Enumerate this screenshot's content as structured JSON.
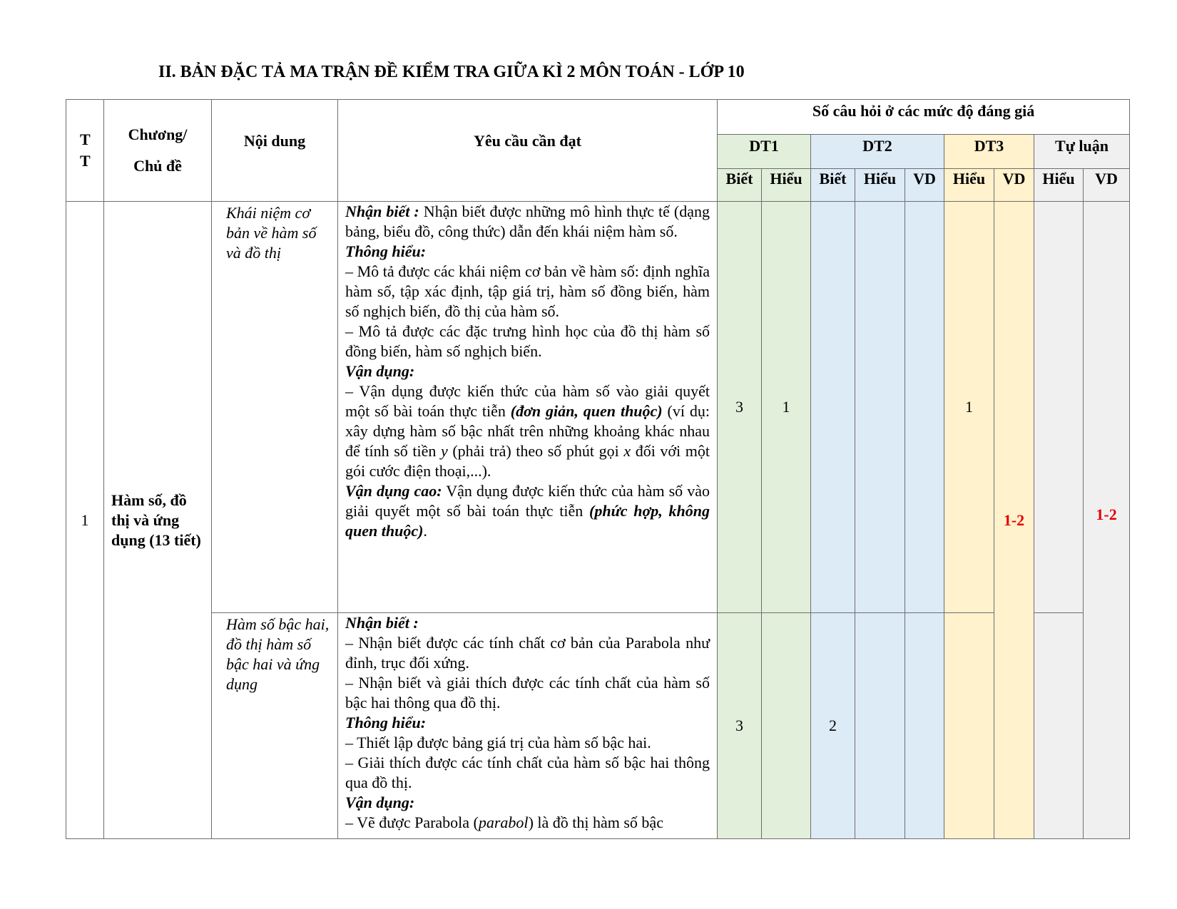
{
  "title": "II. BẢN ĐẶC TẢ MA TRẬN ĐỀ KIỂM TRA GIỮA KÌ 2 MÔN TOÁN - LỚP 10",
  "colors": {
    "dt1": "#e2efda",
    "dt2": "#ddebf7",
    "dt3": "#fff2cc",
    "tu_luan": "#f0f0f0",
    "highlight": "#e60000"
  },
  "header": {
    "tt": "T T",
    "chapter_line1": "Chương/",
    "chapter_line2": "Chủ đề",
    "content": "Nội dung",
    "requirement": "Yêu cầu cần đạt",
    "levels": "Số câu hỏi ở các mức độ đáng giá",
    "groups": [
      "DT1",
      "DT2",
      "DT3",
      "Tự luận"
    ],
    "sub": [
      "Biết",
      "Hiểu",
      "Biết",
      "Hiểu",
      "VD",
      "Hiểu",
      "VD",
      "Hiểu",
      "VD"
    ]
  },
  "rows": [
    {
      "tt": "1",
      "chapter": "Hàm số, đồ thị và ứng dụng (13 tiết)",
      "content": "Khái niệm cơ bản về hàm số và đồ thị",
      "requirement": [
        [
          {
            "s": "bi",
            "t": "Nhận biết :"
          },
          {
            "t": "  Nhận biết được những mô hình thực tế (dạng bảng, biểu đồ, công thức) dẫn đến khái niệm hàm số."
          }
        ],
        [
          {
            "s": "bi",
            "t": "Thông hiểu:"
          }
        ],
        [
          {
            "t": "– Mô tả được các khái niệm cơ bản về hàm số: định nghĩa hàm số, tập xác định, tập giá trị, hàm số đồng biến, hàm số nghịch biến, đồ thị của hàm số."
          }
        ],
        [
          {
            "t": "– Mô tả được các đặc trưng hình học của đồ thị hàm số đồng biến, hàm số nghịch biến."
          }
        ],
        [
          {
            "s": "bi",
            "t": "Vận dụng:"
          }
        ],
        [
          {
            "t": "– Vận dụng được kiến thức của hàm số vào giải quyết một số bài toán thực tiễn "
          },
          {
            "s": "bi",
            "t": "(đơn giản, quen thuộc)"
          },
          {
            "t": " (ví dụ: xây dựng hàm số bậc nhất trên những khoảng khác nhau để tính số tiền "
          },
          {
            "s": "it",
            "t": "y"
          },
          {
            "t": " (phải trả) theo số phút gọi "
          },
          {
            "s": "it",
            "t": "x"
          },
          {
            "t": " đối với một gói cước điện thoại,...)."
          }
        ],
        [
          {
            "s": "bi",
            "t": "Vận dụng cao:"
          },
          {
            "t": " Vận dụng được kiến thức của hàm số vào giải quyết một số bài toán thực tiễn "
          },
          {
            "s": "bi",
            "t": "(phức hợp, không quen thuộc)"
          },
          {
            "t": "."
          }
        ]
      ],
      "counts": {
        "dt1_biet": "3",
        "dt1_hieu": "1",
        "dt2_biet": "",
        "dt2_hieu": "",
        "dt2_vd": "",
        "dt3_hieu": "1",
        "tl_hieu": ""
      }
    },
    {
      "content": "Hàm số bậc hai, đồ thị hàm số bậc hai và ứng dụng",
      "requirement": [
        [
          {
            "s": "bi",
            "t": "Nhận biết :"
          }
        ],
        [
          {
            "t": "– Nhận biết được các tính chất cơ bản của Parabola như đỉnh, trục đối xứng."
          }
        ],
        [
          {
            "t": "– Nhận biết và giải thích được các tính chất của hàm số bậc hai thông qua đồ thị."
          }
        ],
        [
          {
            "s": "bi",
            "t": "Thông hiểu:"
          }
        ],
        [
          {
            "t": "– Thiết lập được bảng giá trị của hàm số bậc hai."
          }
        ],
        [
          {
            "t": "– Giải thích được các tính chất của hàm số bậc hai thông qua đồ thị."
          }
        ],
        [
          {
            "s": "bi",
            "t": "Vận dụng:"
          }
        ],
        [
          {
            "t": "– Vẽ được Parabola ("
          },
          {
            "s": "it",
            "t": "parabol"
          },
          {
            "t": ") là đồ thị hàm số bậc"
          }
        ]
      ],
      "counts": {
        "dt1_biet": "3",
        "dt1_hieu": "",
        "dt2_biet": "2",
        "dt2_hieu": "",
        "dt2_vd": "",
        "dt3_hieu": "",
        "tl_hieu": ""
      }
    }
  ],
  "merged": {
    "dt3_vd": "1-2",
    "tl_vd": "1-2"
  }
}
